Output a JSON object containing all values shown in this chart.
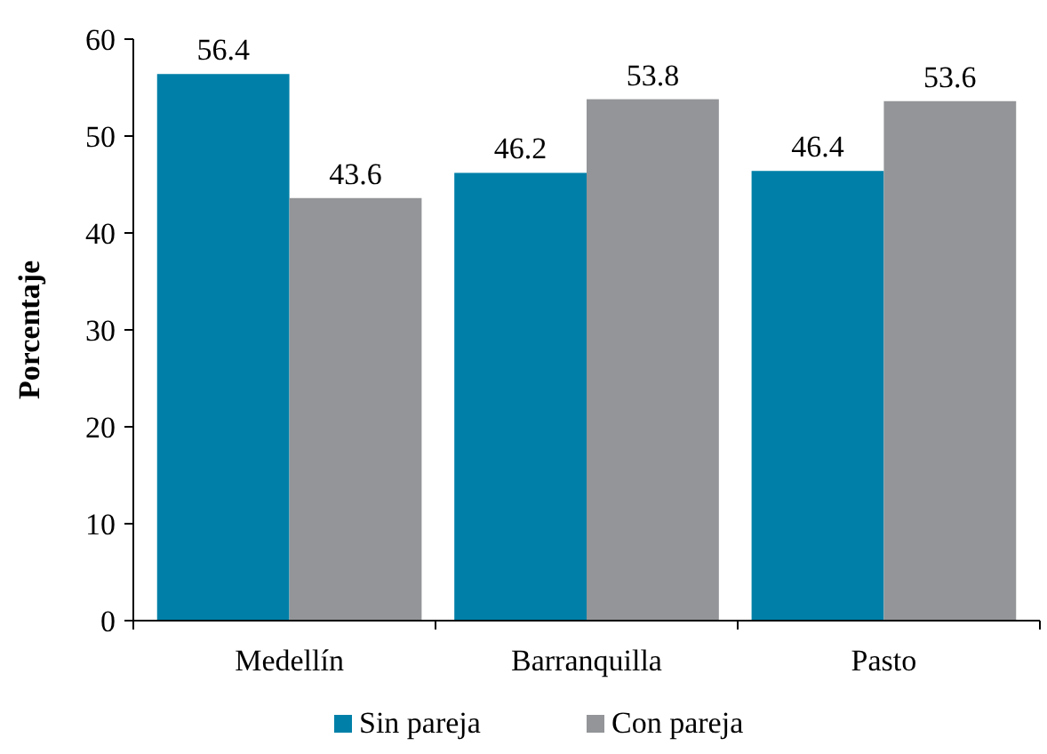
{
  "chart_data": {
    "type": "bar",
    "ylabel": "Porcentaje",
    "categories": [
      "Medellín",
      "Barranquilla",
      "Pasto"
    ],
    "series": [
      {
        "name": "Sin pareja",
        "color": "#0080a8",
        "values": [
          56.4,
          46.2,
          46.4
        ]
      },
      {
        "name": "Con pareja",
        "color": "#939598",
        "values": [
          43.6,
          53.8,
          53.6
        ]
      }
    ],
    "ylim": [
      0,
      60
    ],
    "yticks": [
      0,
      10,
      20,
      30,
      40,
      50,
      60
    ],
    "data_labels": true,
    "grid": false,
    "legend": "bottom"
  }
}
